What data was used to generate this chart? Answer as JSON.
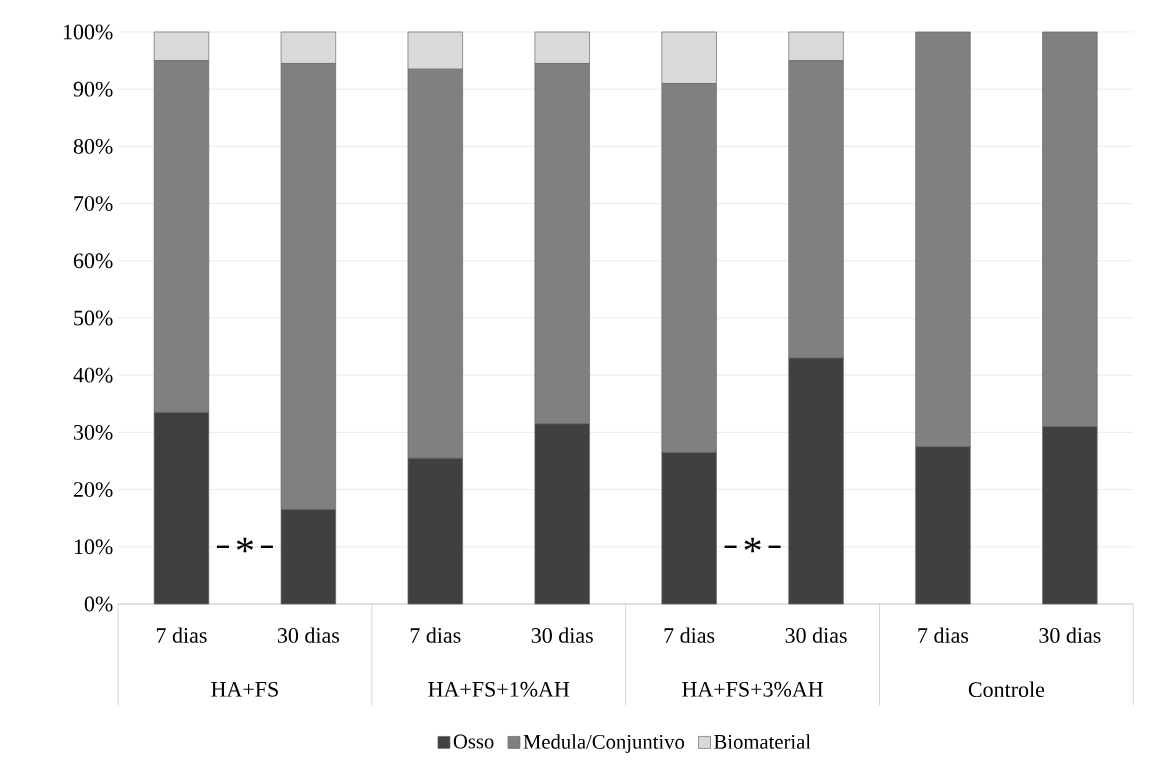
{
  "chart_data": {
    "type": "bar",
    "stacked": true,
    "categories": [
      "7 dias",
      "30 dias",
      "7 dias",
      "30 dias",
      "7 dias",
      "30 dias",
      "7 dias",
      "30 dias"
    ],
    "series": [
      {
        "name": "Osso",
        "color": "#404040",
        "values": [
          33.5,
          16.5,
          25.5,
          31.5,
          26.5,
          43,
          27.5,
          31
        ]
      },
      {
        "name": "Medula/Conjuntivo",
        "color": "#808080",
        "values": [
          61.5,
          78,
          68,
          63,
          64.5,
          52,
          72.5,
          69
        ]
      },
      {
        "name": "Biomaterial",
        "color": "#d9d9d9",
        "values": [
          5,
          5.5,
          6.5,
          5.5,
          9,
          5,
          0,
          0
        ]
      }
    ],
    "ylim": [
      0,
      100
    ],
    "yticks": [
      {
        "value": 0,
        "label": "0%"
      },
      {
        "value": 10,
        "label": "10%"
      },
      {
        "value": 20,
        "label": "20%"
      },
      {
        "value": 30,
        "label": "30%"
      },
      {
        "value": 40,
        "label": "40%"
      },
      {
        "value": 50,
        "label": "50%"
      },
      {
        "value": 60,
        "label": "60%"
      },
      {
        "value": 70,
        "label": "70%"
      },
      {
        "value": 80,
        "label": "80%"
      },
      {
        "value": 90,
        "label": "90%"
      },
      {
        "value": 100,
        "label": "100%"
      }
    ],
    "annotations": [
      "HA+FS",
      "HA+FS+1%AH",
      "HA+FS+3%AH",
      "Controle",
      "*",
      "*"
    ],
    "grid": "y",
    "legend": "bottom"
  }
}
